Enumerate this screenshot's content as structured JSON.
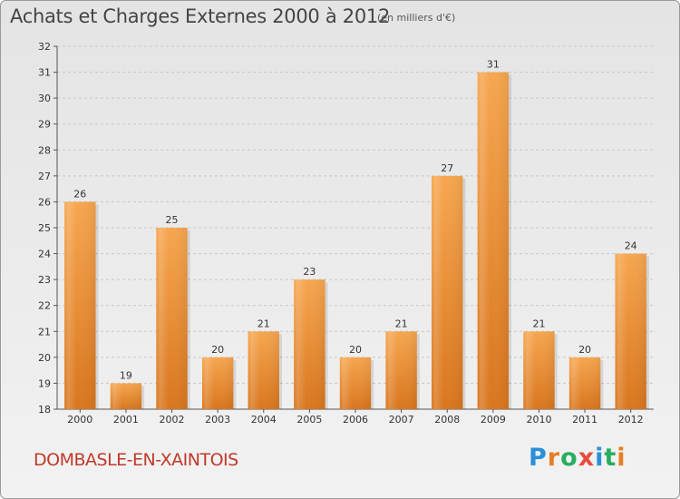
{
  "title": "Achats et Charges Externes 2000 à 2012",
  "subtitle": "(en milliers d'€)",
  "commune": "DOMBASLE-EN-XAINTOIS",
  "logo": {
    "letters": [
      "P",
      "r",
      "o",
      "x",
      "i",
      "t",
      "i"
    ],
    "colors": [
      "#2a8fd8",
      "#e67e22",
      "#27ae60",
      "#e74c3c",
      "#2a8fd8",
      "#27ae60",
      "#e67e22"
    ]
  },
  "colors": {
    "bar_top": "#f6a64f",
    "bar_bottom": "#d9761e",
    "commune_text": "#c0392b"
  },
  "chart_data": {
    "type": "bar",
    "categories": [
      "2000",
      "2001",
      "2002",
      "2003",
      "2004",
      "2005",
      "2006",
      "2007",
      "2008",
      "2009",
      "2010",
      "2011",
      "2012"
    ],
    "values": [
      26,
      19,
      25,
      20,
      21,
      23,
      20,
      21,
      27,
      31,
      21,
      20,
      24
    ],
    "ylim": [
      18,
      32
    ],
    "yticks": [
      "18",
      "19",
      "20",
      "21",
      "22",
      "23",
      "24",
      "25",
      "26",
      "27",
      "28",
      "29",
      "30",
      "31",
      "32"
    ],
    "data_labels": [
      "26",
      "19",
      "25",
      "20",
      "21",
      "23",
      "20",
      "21",
      "27",
      "31",
      "21",
      "20",
      "24"
    ],
    "grid": true
  }
}
